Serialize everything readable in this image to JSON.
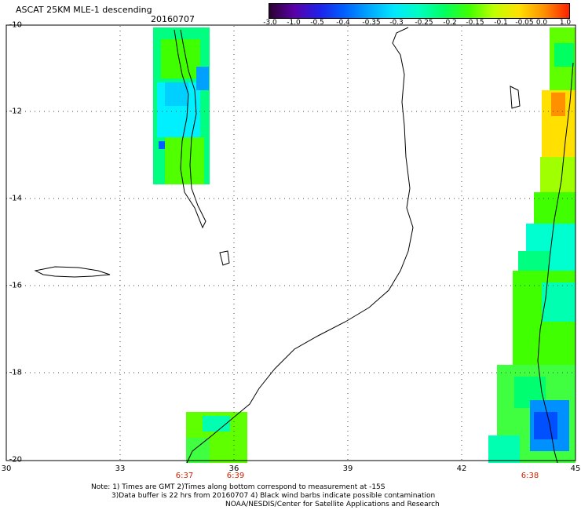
{
  "header": {
    "title": "ASCAT 25KM MLE-1 descending",
    "date": "20160707"
  },
  "colorbar": {
    "labels": [
      "-3.0",
      "-1.0",
      "-0.5",
      "-0.4",
      "-0.35",
      "-0.3",
      "-0.25",
      "-0.2",
      "-0.15",
      "-0.1",
      "-0.05",
      "0.0",
      "1.0"
    ],
    "colors": [
      "#2a0030",
      "#5a00a8",
      "#2020e8",
      "#0060ff",
      "#00a8ff",
      "#00e8ff",
      "#00ffc0",
      "#00ff60",
      "#40ff00",
      "#c0ff00",
      "#ffe000",
      "#ff9000",
      "#ff2000"
    ]
  },
  "axes": {
    "lat_labels": [
      "-10",
      "-12",
      "-14",
      "-16",
      "-18",
      "-20"
    ],
    "lon_labels": [
      "30",
      "33",
      "36",
      "39",
      "42",
      "45"
    ],
    "pass_times": [
      "6:37",
      "6:39",
      "6:38"
    ]
  },
  "notes": {
    "line1": "Note: 1) Times are GMT 2)Times along bottom correspond to measurement at -15S",
    "line2": "3)Data buffer is 22 hrs from 20160707 4) Black wind barbs indicate possible contamination",
    "line3": "NOAA/NESDIS/Center for Satellite Applications and Research"
  }
}
